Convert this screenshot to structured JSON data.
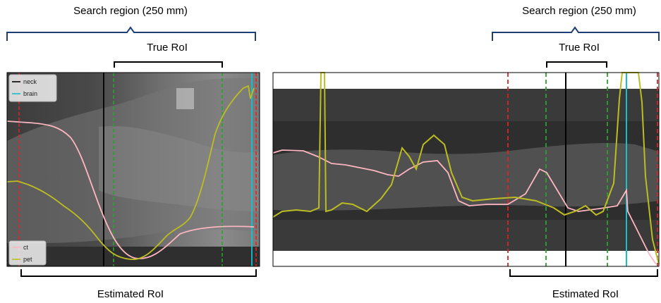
{
  "labels": {
    "search_region_left": "Search region (250 mm)",
    "search_region_right": "Search region (250 mm)",
    "true_roi_left": "True RoI",
    "true_roi_right": "True RoI",
    "estimated_roi_left": "Estimated RoI",
    "estimated_roi_right": "Estimated RoI"
  },
  "legend": {
    "top": [
      {
        "name": "neck",
        "color": "#000000"
      },
      {
        "name": "brain",
        "color": "#17becf"
      }
    ],
    "bottom": [
      {
        "name": "ct",
        "color": "#ffb6c1"
      },
      {
        "name": "pet",
        "color": "#bcbd22"
      }
    ]
  },
  "colors": {
    "brace": "#1f3f7a",
    "estimated_roi_line": "#d62728",
    "true_roi_line": "#2ca02c",
    "neck_line": "#000000",
    "brain_line": "#17becf",
    "ct_curve": "#ffb6c1",
    "pet_curve": "#bcbd22"
  }
}
